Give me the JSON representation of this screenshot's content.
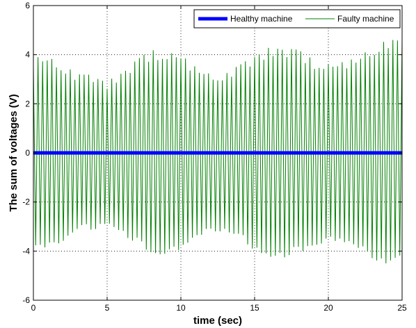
{
  "chart_data": {
    "type": "line",
    "xlabel": "time (sec)",
    "ylabel": "The sum of voltages (V)",
    "xlim": [
      0,
      25
    ],
    "ylim": [
      -6,
      6
    ],
    "xticks": [
      0,
      5,
      10,
      15,
      20,
      25
    ],
    "yticks": [
      -6,
      -4,
      -2,
      0,
      2,
      4,
      6
    ],
    "xtick_labels": [
      "0",
      "5",
      "10",
      "15",
      "20",
      "25"
    ],
    "ytick_labels": [
      "-6",
      "-4",
      "-2",
      "0",
      "2",
      "4",
      "6"
    ],
    "grid": true,
    "legend_position": "top-right",
    "series": [
      {
        "name": "Healthy machine",
        "color": "#0000ff",
        "kind": "constant",
        "value": 0
      },
      {
        "name": "Faulty machine",
        "color": "#008000",
        "kind": "oscillation",
        "frequency_hz": 3.2,
        "envelope_t": [
          0,
          1,
          2,
          3,
          4,
          5,
          6,
          7,
          8,
          9,
          10,
          11,
          12,
          13,
          14,
          15,
          16,
          17,
          18,
          19,
          20,
          21,
          22,
          23,
          24,
          25
        ],
        "envelope_amplitude": [
          3.9,
          3.9,
          3.6,
          3.2,
          3.2,
          2.9,
          3.3,
          3.8,
          4.2,
          4.1,
          4.0,
          3.5,
          3.2,
          3.2,
          3.6,
          4.0,
          4.3,
          4.3,
          4.2,
          3.8,
          3.6,
          3.7,
          3.9,
          4.3,
          4.6,
          4.6
        ]
      }
    ]
  }
}
